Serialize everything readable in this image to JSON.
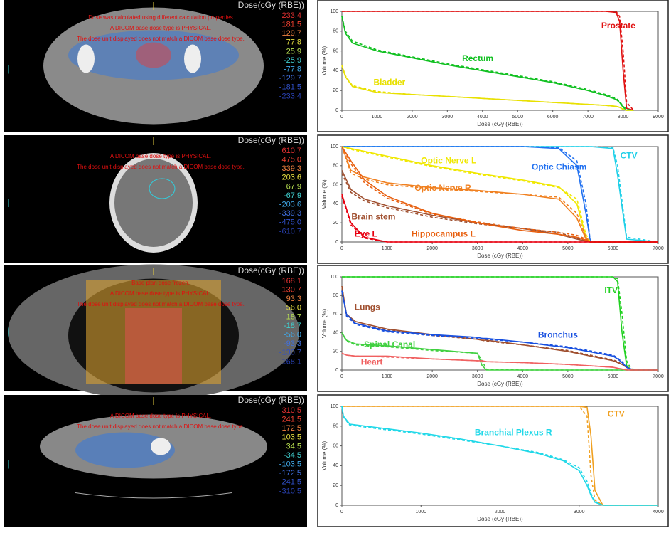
{
  "ct_panels": [
    {
      "header": "Dose(cGy (RBE))",
      "messages": [
        "Dose was calculated using different calculation properties",
        "A DICOM base dose type is PHYSICAL.",
        "The dose unit displayed does not match a DICOM base dose type."
      ],
      "dose_levels": [
        {
          "label": "233.4",
          "color": "#e03030"
        },
        {
          "label": "181.5",
          "color": "#f04030"
        },
        {
          "label": "129.7",
          "color": "#f08040"
        },
        {
          "label": "77.8",
          "color": "#e8e040"
        },
        {
          "label": "25.9",
          "color": "#b8e050"
        },
        {
          "label": "-25.9",
          "color": "#40d0d0"
        },
        {
          "label": "-77.8",
          "color": "#40a8e8"
        },
        {
          "label": "-129.7",
          "color": "#4070e0"
        },
        {
          "label": "-181.5",
          "color": "#3050c8"
        },
        {
          "label": "-233.4",
          "color": "#2840b0"
        }
      ]
    },
    {
      "header": "Dose(cGy (RBE))",
      "messages": [
        "A DICOM base dose type is PHYSICAL.",
        "The dose unit displayed does not match a DICOM base dose type."
      ],
      "dose_levels": [
        {
          "label": "610.7",
          "color": "#e03030"
        },
        {
          "label": "475.0",
          "color": "#f04030"
        },
        {
          "label": "339.3",
          "color": "#f08040"
        },
        {
          "label": "203.6",
          "color": "#e8e040"
        },
        {
          "label": "67.9",
          "color": "#b8e050"
        },
        {
          "label": "-67.9",
          "color": "#40d0d0"
        },
        {
          "label": "-203.6",
          "color": "#40a8e8"
        },
        {
          "label": "-339.3",
          "color": "#4070e0"
        },
        {
          "label": "-475.0",
          "color": "#3050c8"
        },
        {
          "label": "-610.7",
          "color": "#2840b0"
        }
      ]
    },
    {
      "header": "Dose(cGy (RBE))",
      "messages": [
        "Base plan dose frozen.",
        "A DICOM base dose type is PHYSICAL.",
        "The dose unit displayed does not match a DICOM base dose type."
      ],
      "dose_levels": [
        {
          "label": "168.1",
          "color": "#e03030"
        },
        {
          "label": "130.7",
          "color": "#f04030"
        },
        {
          "label": "93.3",
          "color": "#f08040"
        },
        {
          "label": "56.0",
          "color": "#e8e040"
        },
        {
          "label": "18.7",
          "color": "#b8e050"
        },
        {
          "label": "-18.7",
          "color": "#40d0d0"
        },
        {
          "label": "-56.0",
          "color": "#40a8e8"
        },
        {
          "label": "-93.3",
          "color": "#4070e0"
        },
        {
          "label": "-130.7",
          "color": "#3050c8"
        },
        {
          "label": "-168.1",
          "color": "#2840b0"
        }
      ]
    },
    {
      "header": "Dose(cGy (RBE))",
      "messages": [
        "A DICOM base dose type is PHYSICAL.",
        "The dose unit displayed does not match a DICOM base dose type."
      ],
      "dose_levels": [
        {
          "label": "310.5",
          "color": "#e03030"
        },
        {
          "label": "241.5",
          "color": "#f04030"
        },
        {
          "label": "172.5",
          "color": "#f08040"
        },
        {
          "label": "103.5",
          "color": "#e8e040"
        },
        {
          "label": "34.5",
          "color": "#b8e050"
        },
        {
          "label": "-34.5",
          "color": "#40d0d0"
        },
        {
          "label": "-103.5",
          "color": "#40a8e8"
        },
        {
          "label": "-172.5",
          "color": "#4070e0"
        },
        {
          "label": "-241.5",
          "color": "#3050c8"
        },
        {
          "label": "-310.5",
          "color": "#2840b0"
        }
      ]
    }
  ],
  "chart_data": [
    {
      "type": "line",
      "x_label": "Dose (cGy (RBE))",
      "y_label": "Volume (%)",
      "xlim": [
        0,
        9000
      ],
      "xticks": [
        0,
        1000,
        2000,
        3000,
        4000,
        5000,
        6000,
        7000,
        8000,
        9000
      ],
      "ylim": [
        0,
        100
      ],
      "yticks": [
        0,
        20,
        40,
        60,
        80,
        100
      ],
      "x": [
        0,
        100,
        300,
        1000,
        2000,
        3000,
        4000,
        5000,
        6000,
        7000,
        7500,
        7800,
        7900,
        8000,
        8100,
        8300
      ],
      "series": [
        {
          "name": "Prostate",
          "color": "#e01010",
          "values": [
            100,
            100,
            100,
            100,
            100,
            100,
            100,
            100,
            100,
            100,
            100,
            99,
            90,
            40,
            2,
            0
          ],
          "dashed_values": [
            100,
            100,
            100,
            100,
            100,
            100,
            100,
            100,
            100,
            100,
            100,
            100,
            95,
            60,
            8,
            0
          ]
        },
        {
          "name": "Rectum",
          "color": "#10c020",
          "values": [
            95,
            78,
            68,
            60,
            53,
            46,
            40,
            34,
            28,
            20,
            15,
            11,
            8,
            3,
            0,
            0
          ],
          "dashed_values": [
            95,
            80,
            70,
            61,
            54,
            47,
            41,
            35,
            29,
            21,
            16,
            12,
            9,
            4,
            1,
            0
          ]
        },
        {
          "name": "Bladder",
          "color": "#e8e000",
          "values": [
            45,
            34,
            24,
            18,
            16,
            14,
            12,
            10,
            8,
            6,
            5,
            4,
            3,
            1,
            0,
            0
          ],
          "dashed_values": [
            46,
            35,
            25,
            19,
            16,
            14,
            12,
            10,
            8,
            6,
            5,
            4,
            3,
            1,
            0,
            0
          ]
        }
      ]
    },
    {
      "type": "line",
      "x_label": "Dose (cGy (RBE))",
      "y_label": "Volume (%)",
      "xlim": [
        0,
        7000
      ],
      "xticks": [
        0,
        1000,
        2000,
        3000,
        4000,
        5000,
        6000,
        7000
      ],
      "ylim": [
        0,
        100
      ],
      "yticks": [
        0,
        20,
        40,
        60,
        80,
        100
      ],
      "x": [
        0,
        200,
        500,
        1000,
        2000,
        3000,
        4000,
        4800,
        5200,
        5400,
        5500,
        6000,
        6100,
        6300,
        7000
      ],
      "series": [
        {
          "name": "CTV",
          "color": "#20d0e8",
          "values": [
            100,
            100,
            100,
            100,
            100,
            100,
            100,
            100,
            100,
            100,
            100,
            98,
            70,
            3,
            0
          ],
          "dashed_values": [
            100,
            100,
            100,
            100,
            100,
            100,
            100,
            100,
            100,
            100,
            100,
            99,
            80,
            5,
            0
          ]
        },
        {
          "name": "Optic Chiasm",
          "color": "#2070f0",
          "values": [
            100,
            100,
            100,
            100,
            100,
            100,
            100,
            98,
            80,
            30,
            0,
            0,
            0,
            0,
            0
          ],
          "dashed_values": [
            100,
            100,
            100,
            100,
            100,
            100,
            100,
            99,
            85,
            40,
            0,
            0,
            0,
            0,
            0
          ]
        },
        {
          "name": "Optic Nerve L",
          "color": "#f0e800",
          "values": [
            100,
            98,
            95,
            90,
            80,
            72,
            65,
            58,
            40,
            5,
            0,
            0,
            0,
            0,
            0
          ],
          "dashed_values": [
            100,
            97,
            94,
            89,
            79,
            71,
            64,
            57,
            45,
            8,
            0,
            0,
            0,
            0,
            0
          ]
        },
        {
          "name": "Optic Nerve R",
          "color": "#f08020",
          "values": [
            100,
            75,
            68,
            62,
            57,
            54,
            50,
            45,
            25,
            3,
            0,
            0,
            0,
            0,
            0
          ],
          "dashed_values": [
            100,
            72,
            66,
            60,
            56,
            53,
            50,
            47,
            30,
            5,
            0,
            0,
            0,
            0,
            0
          ]
        },
        {
          "name": "Brain stem",
          "color": "#a05030",
          "values": [
            75,
            55,
            45,
            38,
            28,
            20,
            14,
            8,
            3,
            1,
            0,
            0,
            0,
            0,
            0
          ],
          "dashed_values": [
            72,
            52,
            43,
            36,
            26,
            19,
            14,
            10,
            4,
            1,
            0,
            0,
            0,
            0,
            0
          ]
        },
        {
          "name": "Hippocampus L",
          "color": "#e86010",
          "values": [
            100,
            85,
            65,
            48,
            30,
            20,
            12,
            8,
            5,
            2,
            0,
            0,
            0,
            0,
            0
          ],
          "dashed_values": [
            100,
            82,
            62,
            46,
            29,
            21,
            14,
            10,
            7,
            3,
            0,
            0,
            0,
            0,
            0
          ]
        },
        {
          "name": "Eye L",
          "color": "#e80010",
          "values": [
            50,
            20,
            5,
            0,
            0,
            0,
            0,
            0,
            0,
            0,
            0,
            0,
            0,
            0,
            0
          ],
          "dashed_values": [
            48,
            18,
            4,
            0,
            0,
            0,
            0,
            0,
            0,
            0,
            0,
            0,
            0,
            0,
            0
          ]
        }
      ]
    },
    {
      "type": "line",
      "x_label": "Dose (cGy (RBE))",
      "y_label": "Volume (%)",
      "xlim": [
        0,
        7000
      ],
      "xticks": [
        0,
        1000,
        2000,
        3000,
        4000,
        5000,
        6000,
        7000
      ],
      "ylim": [
        0,
        100
      ],
      "yticks": [
        0,
        20,
        40,
        60,
        80,
        100
      ],
      "x": [
        0,
        100,
        300,
        1000,
        2000,
        3000,
        3100,
        3200,
        4000,
        5000,
        6000,
        6100,
        6200,
        6300,
        6400,
        7000
      ],
      "series": [
        {
          "name": "ITV",
          "color": "#20d020",
          "values": [
            100,
            100,
            100,
            100,
            100,
            100,
            100,
            100,
            100,
            100,
            100,
            95,
            40,
            5,
            0,
            0
          ],
          "dashed_values": [
            100,
            100,
            100,
            100,
            100,
            100,
            100,
            100,
            100,
            100,
            100,
            98,
            60,
            10,
            1,
            0
          ]
        },
        {
          "name": "Lungs",
          "color": "#a05030",
          "values": [
            90,
            60,
            52,
            44,
            38,
            33,
            32,
            32,
            27,
            20,
            10,
            8,
            6,
            3,
            0,
            0
          ],
          "dashed_values": [
            90,
            58,
            50,
            43,
            37,
            33,
            32,
            31,
            27,
            21,
            11,
            9,
            6,
            3,
            1,
            0
          ]
        },
        {
          "name": "Bronchus",
          "color": "#1850e0",
          "values": [
            85,
            60,
            50,
            42,
            38,
            35,
            34,
            34,
            30,
            24,
            15,
            12,
            8,
            3,
            0,
            0
          ],
          "dashed_values": [
            85,
            58,
            49,
            41,
            37,
            34,
            34,
            33,
            30,
            25,
            16,
            13,
            9,
            4,
            1,
            0
          ]
        },
        {
          "name": "Spinal Canal",
          "color": "#40d040",
          "values": [
            40,
            32,
            28,
            26,
            22,
            18,
            5,
            0,
            0,
            0,
            0,
            0,
            0,
            0,
            0,
            0
          ],
          "dashed_values": [
            40,
            31,
            27,
            25,
            21,
            18,
            10,
            1,
            0,
            0,
            0,
            0,
            0,
            0,
            0,
            0
          ]
        },
        {
          "name": "Heart",
          "color": "#f06060",
          "values": [
            18,
            16,
            15,
            15,
            12,
            10,
            10,
            9,
            8,
            6,
            3,
            2,
            1,
            0,
            0,
            0
          ],
          "dashed_values": [
            18,
            16,
            15,
            14,
            12,
            10,
            10,
            9,
            8,
            6,
            3,
            2,
            1,
            1,
            0,
            0
          ]
        }
      ]
    },
    {
      "type": "line",
      "x_label": "Dose (cGy (RBE))",
      "y_label": "Volume (%)",
      "xlim": [
        0,
        4000
      ],
      "xticks": [
        0,
        1000,
        2000,
        3000,
        4000
      ],
      "ylim": [
        0,
        100
      ],
      "yticks": [
        0,
        20,
        40,
        60,
        80,
        100
      ],
      "x": [
        0,
        20,
        100,
        500,
        1000,
        1500,
        2000,
        2500,
        2800,
        3000,
        3100,
        3150,
        3200,
        3300,
        4000
      ],
      "series": [
        {
          "name": "CTV",
          "color": "#f0a020",
          "values": [
            100,
            100,
            100,
            100,
            100,
            100,
            100,
            100,
            100,
            100,
            99,
            70,
            15,
            0,
            0
          ],
          "dashed_values": [
            100,
            100,
            100,
            100,
            100,
            100,
            100,
            100,
            100,
            100,
            90,
            30,
            5,
            0,
            0
          ]
        },
        {
          "name": "Branchial Plexus R",
          "color": "#20d8e8",
          "values": [
            100,
            90,
            82,
            78,
            73,
            67,
            60,
            52,
            45,
            35,
            20,
            10,
            3,
            0,
            0
          ],
          "dashed_values": [
            100,
            89,
            81,
            77,
            72,
            66,
            60,
            53,
            46,
            38,
            24,
            12,
            4,
            0,
            0
          ]
        }
      ]
    }
  ]
}
